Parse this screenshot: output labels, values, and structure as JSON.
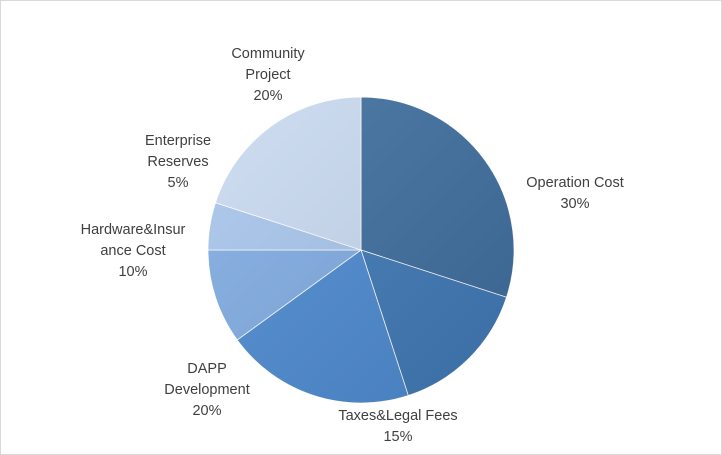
{
  "chart_data": {
    "type": "pie",
    "title": "",
    "slices": [
      {
        "label_lines": [
          "Operation Cost"
        ],
        "pct_text": "30%",
        "value": 30,
        "color": "#3f6e9f"
      },
      {
        "label_lines": [
          "Taxes&Legal Fees"
        ],
        "pct_text": "15%",
        "value": 15,
        "color": "#3f79b5"
      },
      {
        "label_lines": [
          "DAPP",
          "Development"
        ],
        "pct_text": "20%",
        "value": 20,
        "color": "#4d8ad0"
      },
      {
        "label_lines": [
          "Hardware&Insur",
          "ance Cost"
        ],
        "pct_text": "10%",
        "value": 10,
        "color": "#80ace2"
      },
      {
        "label_lines": [
          "Enterprise",
          "Reserves"
        ],
        "pct_text": "5%",
        "value": 5,
        "color": "#a8c6ec"
      },
      {
        "label_lines": [
          "Community",
          "Project"
        ],
        "pct_text": "20%",
        "value": 20,
        "color": "#c9daf0"
      }
    ]
  }
}
